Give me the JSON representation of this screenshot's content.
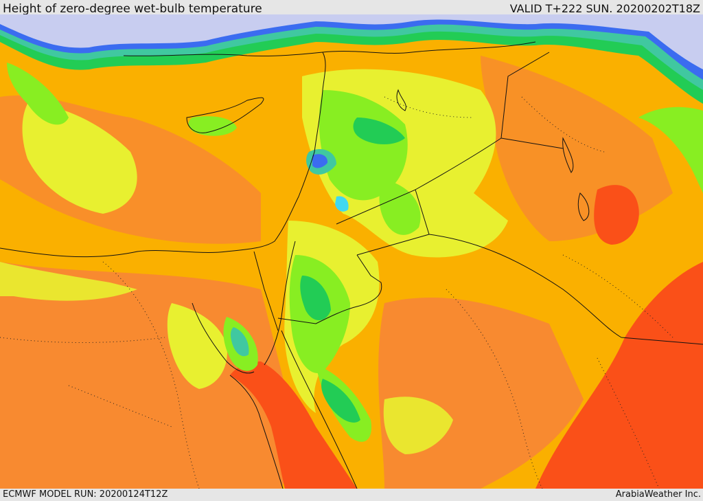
{
  "header": {
    "title": "Height of zero-degree wet-bulb temperature",
    "valid": "VALID T+222 SUN. 20200202T18Z"
  },
  "footer": {
    "model_run": "ECMWF MODEL RUN: 20200124T12Z",
    "brand": "ArabiaWeather Inc."
  },
  "colors": {
    "lowest": "#c8cdf0",
    "blue": "#3b6cf0",
    "cyan": "#40d8f0",
    "teal": "#40c8a0",
    "green": "#22cc55",
    "light_green": "#88ee22",
    "yellow": "#e8f030",
    "orange_light": "#fab000",
    "orange": "#f88a30",
    "red_orange": "#fa5018",
    "coast_line": "#111111"
  }
}
